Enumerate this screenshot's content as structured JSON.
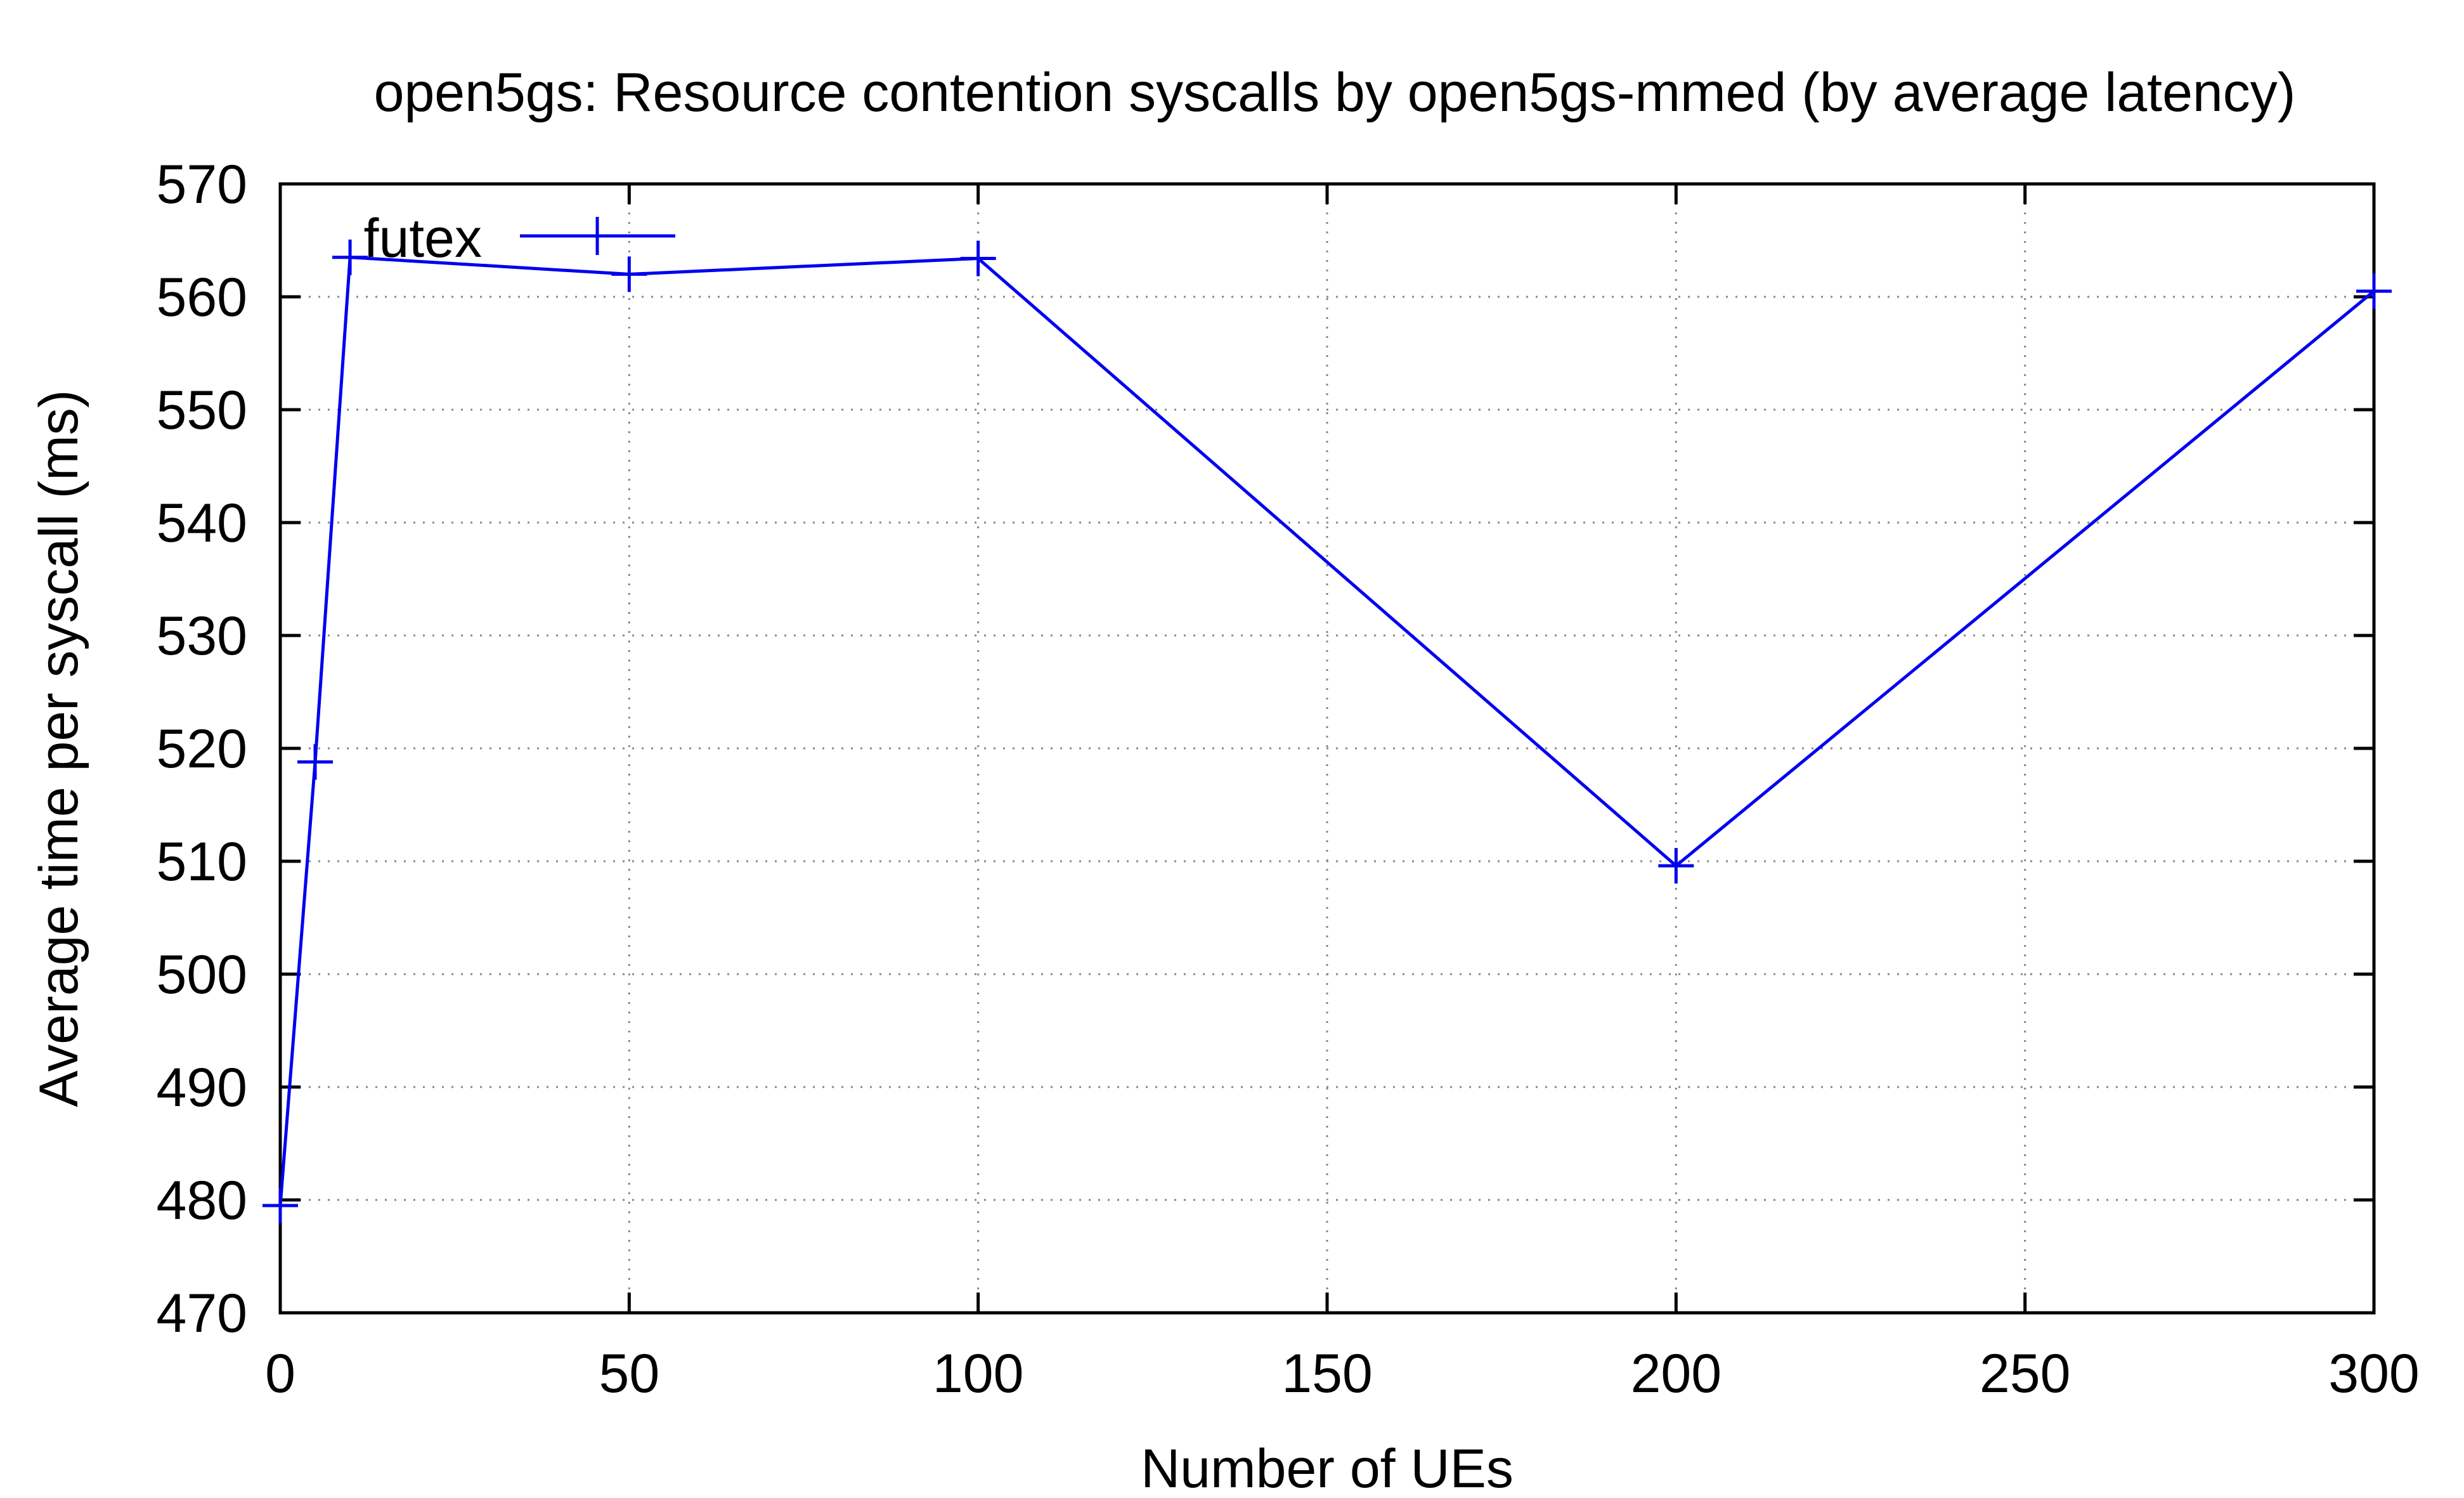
{
  "chart_data": {
    "type": "line",
    "title": "open5gs: Resource contention syscalls by open5gs-mmed (by average latency)",
    "xlabel": "Number of UEs",
    "ylabel": "Average time per syscall (ms)",
    "xlim": [
      0,
      300
    ],
    "ylim": [
      470,
      570
    ],
    "xticks": [
      0,
      50,
      100,
      150,
      200,
      250,
      300
    ],
    "yticks": [
      470,
      480,
      490,
      500,
      510,
      520,
      530,
      540,
      550,
      560,
      570
    ],
    "grid": true,
    "legend_position": "top-left",
    "series": [
      {
        "name": "futex",
        "color": "#0000ee",
        "marker": "plus",
        "x": [
          0,
          5,
          10,
          50,
          100,
          200,
          300
        ],
        "y": [
          479.5,
          518.8,
          563.5,
          562.0,
          563.4,
          509.6,
          560.5
        ]
      }
    ]
  }
}
